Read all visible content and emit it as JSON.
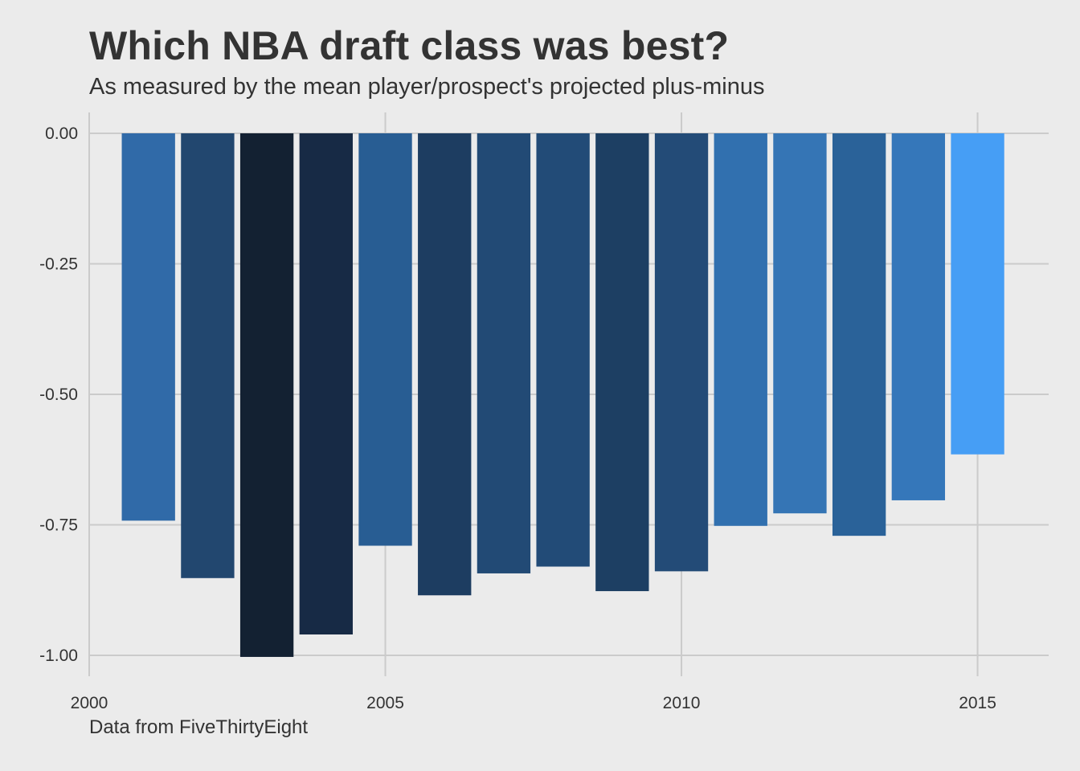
{
  "title": "Which NBA draft class was best?",
  "subtitle": "As measured by the mean player/prospect's projected plus-minus",
  "caption": "Data from FiveThirtyEight",
  "colors": {
    "background": "#ebebeb",
    "grid": "#cbcbcb",
    "text": "#333333",
    "bar_low": "#132132",
    "bar_high": "#56b1f7"
  },
  "chart_data": {
    "type": "bar",
    "x": [
      2001,
      2002,
      2003,
      2004,
      2005,
      2006,
      2007,
      2008,
      2009,
      2010,
      2011,
      2012,
      2013,
      2014,
      2015
    ],
    "values": [
      -0.742,
      -0.852,
      -1.003,
      -0.96,
      -0.79,
      -0.885,
      -0.843,
      -0.83,
      -0.877,
      -0.839,
      -0.752,
      -0.728,
      -0.771,
      -0.703,
      -0.615
    ],
    "fill_colors": [
      "#306aa8",
      "#22476f",
      "#132132",
      "#172a45",
      "#285d93",
      "#1d3d61",
      "#224a75",
      "#224b77",
      "#1d3f63",
      "#234b77",
      "#3170af",
      "#3575b5",
      "#2a6299",
      "#3577ba",
      "#469ef5"
    ],
    "xlim": [
      2000,
      2016.2
    ],
    "ylim": [
      -1.04,
      0.04
    ],
    "xticks": [
      2000,
      2005,
      2010,
      2015
    ],
    "xtick_labels": [
      "2000",
      "2005",
      "2010",
      "2015"
    ],
    "yticks": [
      0,
      -0.25,
      -0.5,
      -0.75,
      -1.0
    ],
    "ytick_labels": [
      "0.00",
      "-0.25",
      "-0.50",
      "-0.75",
      "-1.00"
    ],
    "xlabel": "",
    "ylabel": "",
    "grid": true,
    "legend": "none"
  }
}
